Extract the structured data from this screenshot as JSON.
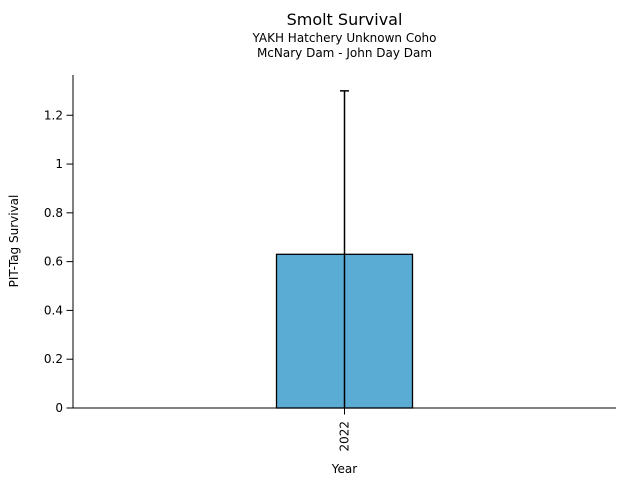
{
  "chart_data": {
    "type": "bar",
    "title": "Smolt Survival",
    "subtitle_line1": "YAKH Hatchery Unknown Coho",
    "subtitle_line2": "McNary Dam - John Day Dam",
    "xlabel": "Year",
    "ylabel": "PIT-Tag Survival",
    "categories": [
      "2022"
    ],
    "values": [
      0.63
    ],
    "error_bar_top": [
      1.3
    ],
    "error_bar_bottom_clipped_at": 0,
    "ytick_values": [
      0,
      0.2,
      0.4,
      0.6,
      0.8,
      1,
      1.2
    ],
    "ytick_labels": [
      "0",
      "0.2",
      "0.4",
      "0.6",
      "0.8",
      "1",
      "1.2"
    ],
    "ylim": [
      0,
      1.365
    ],
    "grid": false,
    "legend": null,
    "bar_color": "#5BACD5",
    "bar_edge_color": "#000000",
    "error_bar_color": "#000000",
    "axis_color": "#000000",
    "background_color": "#ffffff",
    "xtick_label_rotation": "vertical"
  }
}
